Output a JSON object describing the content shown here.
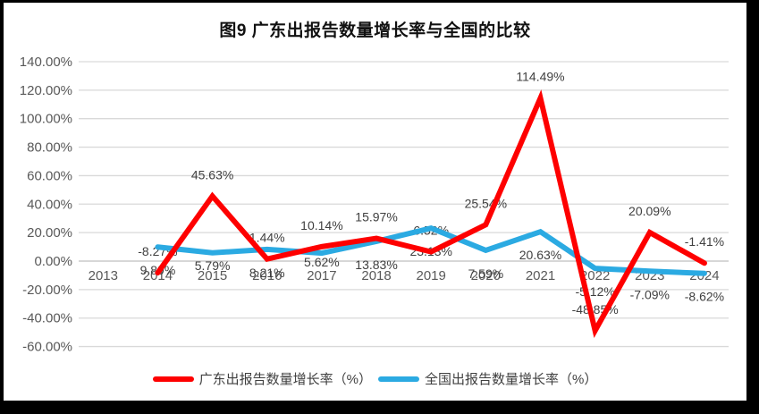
{
  "title": "图9  广东出报告数量增长率与全国的比较",
  "chart_data": {
    "type": "line",
    "title": "图9  广东出报告数量增长率与全国的比较",
    "categories": [
      "2013",
      "2014",
      "2015",
      "2016",
      "2017",
      "2018",
      "2019",
      "2020",
      "2021",
      "2022",
      "2023",
      "2024"
    ],
    "series": [
      {
        "key": "guangdong",
        "name": "广东出报告数量增长率（%）",
        "color": "#fe0000",
        "label_position": "above",
        "label_offset": -24,
        "values": [
          null,
          -8.27,
          45.63,
          1.44,
          10.14,
          15.97,
          6.52,
          25.54,
          114.49,
          -48.85,
          20.09,
          -1.41
        ],
        "labels": [
          "",
          "-8.27%",
          "45.63%",
          "1.44%",
          "10.14%",
          "15.97%",
          "6.52%",
          "25.54%",
          "114.49%",
          "-48.85%",
          "20.09%",
          "-1.41%"
        ]
      },
      {
        "key": "national",
        "name": "全国出报告数量增长率（%）",
        "color": "#2baae2",
        "label_position": "below",
        "label_offset": 26,
        "label_offset_overrides": {
          "2": 14,
          "4": 10
        },
        "values": [
          null,
          9.89,
          5.79,
          8.21,
          5.62,
          13.83,
          23.13,
          7.59,
          20.63,
          -5.12,
          -7.09,
          -8.62
        ],
        "labels": [
          "",
          "9.89%",
          "5.79%",
          "8.21%",
          "5.62%",
          "13.83%",
          "23.13%",
          "7.59%",
          "20.63%",
          "-5.12%",
          "-7.09%",
          "-8.62%"
        ]
      }
    ],
    "y_axis": {
      "min": -60,
      "max": 140,
      "step": 20,
      "tick_labels": [
        "140.00%",
        "120.00%",
        "100.00%",
        "80.00%",
        "60.00%",
        "40.00%",
        "20.00%",
        "0.00%",
        "-20.00%",
        "-40.00%",
        "-60.00%"
      ]
    },
    "x_axis_position": "zero-line",
    "grid": true,
    "legend_position": "bottom",
    "colors": {
      "gridline": "#d9d9d9",
      "zero_line": "#bfbfbf",
      "tick_text": "#595959",
      "data_label_text": "#3f3f3f",
      "title_text": "#111111",
      "frame": "#000000",
      "background": "#ffffff"
    }
  }
}
